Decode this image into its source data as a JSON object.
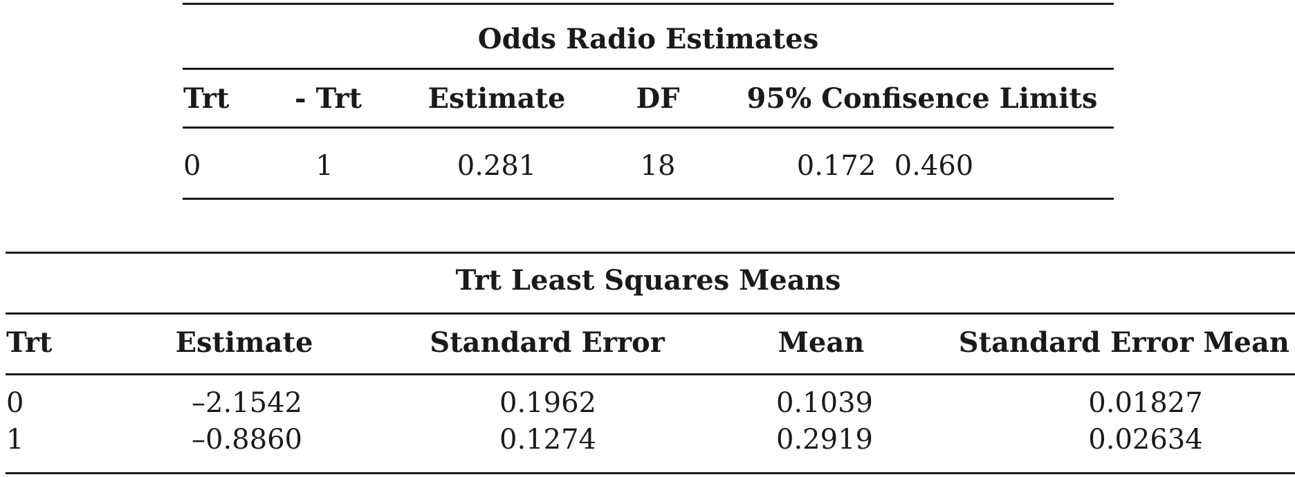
{
  "odds_table": {
    "title": "Odds Radio Estimates",
    "headers": {
      "trt": "Trt",
      "neg_trt": "- Trt",
      "estimate": "Estimate",
      "df": "DF",
      "limits": "95% Confisence Limits"
    },
    "row": {
      "trt": "0",
      "neg_trt": "1",
      "estimate": "0.281",
      "df": "18",
      "lower": "0.172",
      "upper": "0.460"
    }
  },
  "lsmeans_table": {
    "title": "Trt Least Squares Means",
    "headers": {
      "trt": "Trt",
      "estimate": "Estimate",
      "std_error": "Standard Error",
      "mean": "Mean",
      "std_error_mean": "Standard Error Mean"
    },
    "rows": [
      {
        "trt": "0",
        "estimate": "–2.1542",
        "std_error": "0.1962",
        "mean": "0.1039",
        "std_error_mean": "0.01827"
      },
      {
        "trt": "1",
        "estimate": "–0.8860",
        "std_error": "0.1274",
        "mean": "0.2919",
        "std_error_mean": "0.02634"
      }
    ]
  }
}
